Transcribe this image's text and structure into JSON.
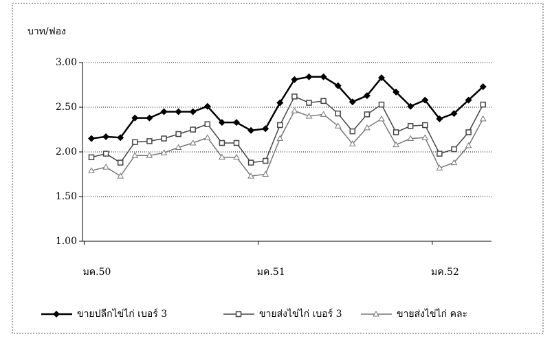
{
  "chart_data": {
    "type": "line",
    "y_label": "บาท/ฟอง",
    "categories": [
      "มค.50",
      null,
      null,
      null,
      null,
      null,
      null,
      null,
      null,
      null,
      null,
      null,
      "มค.51",
      null,
      null,
      null,
      null,
      null,
      null,
      null,
      null,
      null,
      null,
      null,
      "มค.52",
      null,
      null,
      null
    ],
    "series": [
      {
        "name": "ขายปลีกไข่ไก่ เบอร์ 3",
        "color": "#000000",
        "marker": "diamond",
        "values": [
          2.15,
          2.17,
          2.16,
          2.38,
          2.38,
          2.45,
          2.45,
          2.45,
          2.51,
          2.33,
          2.33,
          2.24,
          2.26,
          2.55,
          2.81,
          2.84,
          2.84,
          2.74,
          2.56,
          2.63,
          2.83,
          2.67,
          2.51,
          2.58,
          2.37,
          2.43,
          2.58,
          2.73
        ]
      },
      {
        "name": "ขายส่งไข่ไก่ เบอร์ 3",
        "color": "#444444",
        "marker": "square",
        "values": [
          1.94,
          1.98,
          1.88,
          2.11,
          2.12,
          2.15,
          2.2,
          2.25,
          2.31,
          2.1,
          2.1,
          1.88,
          1.9,
          2.3,
          2.62,
          2.55,
          2.57,
          2.43,
          2.23,
          2.42,
          2.53,
          2.22,
          2.29,
          2.3,
          1.98,
          2.03,
          2.22,
          2.53
        ]
      },
      {
        "name": "ขายส่งไข่ไก่ คละ",
        "color": "#777777",
        "marker": "triangle",
        "values": [
          1.79,
          1.83,
          1.73,
          1.96,
          1.96,
          1.99,
          2.05,
          2.1,
          2.16,
          1.94,
          1.94,
          1.73,
          1.75,
          2.15,
          2.46,
          2.4,
          2.42,
          2.29,
          2.09,
          2.27,
          2.37,
          2.08,
          2.15,
          2.16,
          1.82,
          1.88,
          2.07,
          2.37
        ]
      }
    ],
    "ylim": [
      1,
      3
    ],
    "yticks": [
      {
        "value": 1,
        "label": "1.00"
      },
      {
        "value": 1.5,
        "label": "1.50"
      },
      {
        "value": 2,
        "label": "2.00"
      },
      {
        "value": 2.5,
        "label": "2.50"
      },
      {
        "value": 3,
        "label": "3.00"
      }
    ],
    "grid": true,
    "legend": "bottom"
  }
}
